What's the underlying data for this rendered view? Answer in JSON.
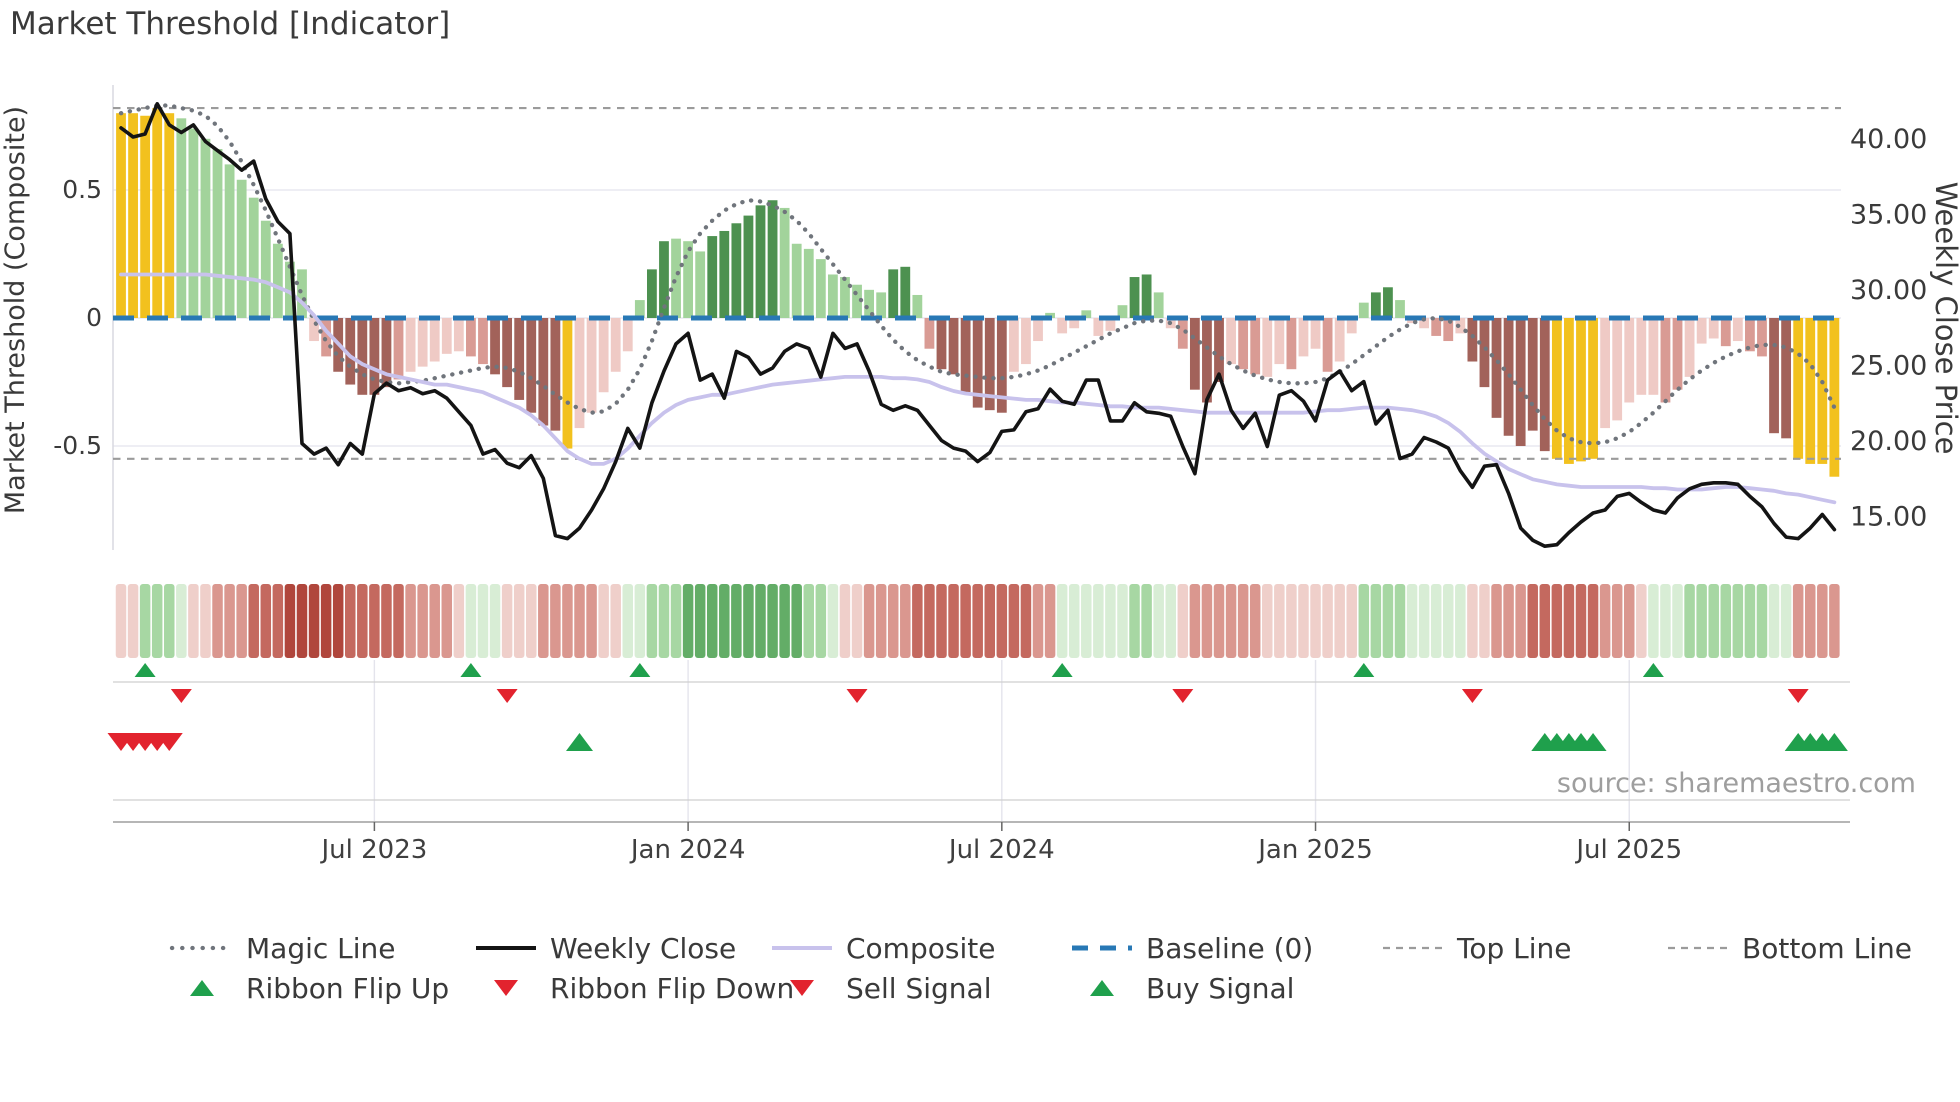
{
  "title": "Market Threshold [Indicator]",
  "source_note": "source: sharemaestro.com",
  "axes": {
    "left_label": "Market Threshold (Composite)",
    "right_label": "Weekly Close Price",
    "left_ticks": [
      "0.5",
      "0",
      "-0.5"
    ],
    "left_tick_values": [
      0.5,
      0,
      -0.5
    ],
    "right_ticks": [
      "40.00",
      "35.00",
      "30.00",
      "25.00",
      "20.00",
      "15.00"
    ],
    "right_tick_values": [
      40,
      35,
      30,
      25,
      20,
      15
    ],
    "x_ticks": [
      "Jul 2023",
      "Jan 2024",
      "Jul 2024",
      "Jan 2025",
      "Jul 2025"
    ],
    "x_tick_weeks": [
      21,
      47,
      73,
      99,
      125
    ]
  },
  "chart_data": {
    "type": "bar",
    "subtype": "weekly composite indicator bars with overlay lines, color ribbon and signal marker rows",
    "x_unit": "week",
    "n_weeks": 143,
    "ylim_left": [
      -0.85,
      0.9
    ],
    "ylim_right": [
      12,
      43
    ],
    "top_line": 0.82,
    "bottom_line": -0.55,
    "baseline": 0,
    "composite_bars": [
      0.8,
      0.8,
      0.79,
      0.82,
      0.8,
      0.78,
      0.74,
      0.7,
      0.66,
      0.6,
      0.54,
      0.47,
      0.38,
      0.29,
      0.22,
      0.19,
      -0.09,
      -0.15,
      -0.21,
      -0.26,
      -0.3,
      -0.3,
      -0.27,
      -0.24,
      -0.21,
      -0.19,
      -0.17,
      -0.14,
      -0.13,
      -0.15,
      -0.18,
      -0.22,
      -0.27,
      -0.32,
      -0.37,
      -0.42,
      -0.44,
      -0.51,
      -0.43,
      -0.37,
      -0.29,
      -0.21,
      -0.13,
      0.07,
      0.19,
      0.3,
      0.31,
      0.3,
      0.26,
      0.32,
      0.34,
      0.37,
      0.4,
      0.44,
      0.46,
      0.43,
      0.29,
      0.27,
      0.23,
      0.17,
      0.16,
      0.13,
      0.11,
      0.1,
      0.19,
      0.2,
      0.09,
      -0.12,
      -0.2,
      -0.22,
      -0.29,
      -0.35,
      -0.36,
      -0.37,
      -0.21,
      -0.18,
      -0.09,
      0.02,
      -0.06,
      -0.04,
      0.03,
      -0.07,
      -0.05,
      0.05,
      0.16,
      0.17,
      0.1,
      -0.04,
      -0.12,
      -0.28,
      -0.33,
      -0.25,
      -0.18,
      -0.2,
      -0.22,
      -0.23,
      -0.18,
      -0.2,
      -0.15,
      -0.12,
      -0.21,
      -0.17,
      -0.06,
      0.06,
      0.1,
      0.12,
      0.07,
      -0.02,
      -0.04,
      -0.07,
      -0.09,
      -0.06,
      -0.17,
      -0.27,
      -0.39,
      -0.46,
      -0.5,
      -0.44,
      -0.52,
      -0.55,
      -0.57,
      -0.56,
      -0.55,
      -0.43,
      -0.4,
      -0.33,
      -0.3,
      -0.3,
      -0.33,
      -0.28,
      -0.23,
      -0.1,
      -0.08,
      -0.11,
      -0.09,
      -0.13,
      -0.15,
      -0.45,
      -0.47,
      -0.55,
      -0.57,
      -0.57,
      -0.62
    ],
    "bar_colors": [
      "Y",
      "Y",
      "Y",
      "Y",
      "Y",
      "g",
      "g",
      "g",
      "g",
      "g",
      "g",
      "g",
      "g",
      "g",
      "g",
      "g",
      "r",
      "m",
      "R",
      "R",
      "R",
      "R",
      "R",
      "m",
      "r",
      "r",
      "r",
      "r",
      "r",
      "m",
      "m",
      "R",
      "R",
      "R",
      "R",
      "R",
      "R",
      "Y",
      "r",
      "r",
      "r",
      "r",
      "r",
      "g",
      "G",
      "G",
      "g",
      "g",
      "g",
      "G",
      "G",
      "G",
      "G",
      "G",
      "G",
      "g",
      "g",
      "g",
      "g",
      "g",
      "g",
      "g",
      "g",
      "g",
      "G",
      "G",
      "g",
      "m",
      "R",
      "R",
      "R",
      "R",
      "R",
      "R",
      "r",
      "r",
      "r",
      "g",
      "r",
      "r",
      "g",
      "r",
      "r",
      "g",
      "G",
      "G",
      "g",
      "r",
      "m",
      "R",
      "R",
      "R",
      "r",
      "m",
      "m",
      "r",
      "r",
      "m",
      "r",
      "r",
      "m",
      "r",
      "r",
      "g",
      "G",
      "G",
      "g",
      "r",
      "r",
      "m",
      "m",
      "r",
      "R",
      "R",
      "R",
      "R",
      "R",
      "R",
      "R",
      "Y",
      "Y",
      "Y",
      "Y",
      "r",
      "r",
      "r",
      "r",
      "r",
      "m",
      "m",
      "r",
      "r",
      "r",
      "m",
      "r",
      "m",
      "m",
      "R",
      "R",
      "Y",
      "Y",
      "Y",
      "Y"
    ],
    "weekly_close": [
      40.7,
      40.1,
      40.3,
      42.3,
      40.9,
      40.4,
      40.9,
      39.8,
      39.2,
      38.6,
      37.9,
      38.5,
      36.0,
      34.5,
      33.7,
      19.8,
      19.1,
      19.5,
      18.4,
      19.8,
      19.1,
      23.1,
      23.8,
      23.3,
      23.5,
      23.1,
      23.3,
      22.8,
      21.9,
      21.0,
      19.1,
      19.4,
      18.5,
      18.2,
      19.0,
      17.5,
      13.7,
      13.5,
      14.2,
      15.4,
      16.8,
      18.6,
      20.8,
      19.5,
      22.5,
      24.6,
      26.4,
      27.1,
      24.0,
      24.4,
      22.8,
      25.9,
      25.5,
      24.4,
      24.8,
      25.9,
      26.4,
      26.1,
      24.2,
      27.1,
      26.1,
      26.4,
      24.6,
      22.4,
      22.0,
      22.3,
      22.0,
      21.0,
      20.0,
      19.5,
      19.3,
      18.6,
      19.2,
      20.6,
      20.7,
      21.9,
      22.1,
      23.4,
      22.6,
      22.4,
      24.0,
      24.0,
      21.3,
      21.3,
      22.5,
      21.9,
      21.8,
      21.6,
      19.6,
      17.8,
      22.7,
      24.4,
      22.0,
      20.8,
      21.8,
      19.6,
      23.0,
      23.3,
      22.6,
      21.3,
      24.0,
      24.6,
      23.3,
      23.9,
      21.1,
      22.0,
      18.8,
      19.1,
      20.2,
      19.9,
      19.5,
      18.0,
      16.9,
      18.3,
      18.4,
      16.5,
      14.2,
      13.4,
      13.0,
      13.1,
      13.9,
      14.6,
      15.2,
      15.4,
      16.3,
      16.5,
      15.9,
      15.4,
      15.2,
      16.2,
      16.8,
      17.1,
      17.2,
      17.2,
      17.1,
      16.3,
      15.6,
      14.5,
      13.6,
      13.5,
      14.2,
      15.1,
      14.1
    ],
    "composite_line": [
      0.17,
      0.17,
      0.17,
      0.17,
      0.17,
      0.17,
      0.17,
      0.17,
      0.165,
      0.16,
      0.155,
      0.15,
      0.14,
      0.12,
      0.1,
      0.06,
      0.01,
      -0.05,
      -0.1,
      -0.15,
      -0.18,
      -0.2,
      -0.22,
      -0.23,
      -0.24,
      -0.25,
      -0.26,
      -0.26,
      -0.27,
      -0.28,
      -0.29,
      -0.31,
      -0.33,
      -0.35,
      -0.38,
      -0.42,
      -0.47,
      -0.52,
      -0.55,
      -0.57,
      -0.57,
      -0.55,
      -0.51,
      -0.46,
      -0.41,
      -0.37,
      -0.34,
      -0.32,
      -0.31,
      -0.3,
      -0.3,
      -0.29,
      -0.28,
      -0.27,
      -0.26,
      -0.255,
      -0.25,
      -0.245,
      -0.24,
      -0.235,
      -0.23,
      -0.23,
      -0.23,
      -0.23,
      -0.235,
      -0.235,
      -0.24,
      -0.25,
      -0.27,
      -0.285,
      -0.295,
      -0.3,
      -0.305,
      -0.31,
      -0.315,
      -0.32,
      -0.32,
      -0.325,
      -0.33,
      -0.33,
      -0.335,
      -0.34,
      -0.345,
      -0.345,
      -0.35,
      -0.35,
      -0.35,
      -0.355,
      -0.36,
      -0.365,
      -0.37,
      -0.37,
      -0.37,
      -0.37,
      -0.37,
      -0.37,
      -0.37,
      -0.37,
      -0.37,
      -0.365,
      -0.36,
      -0.36,
      -0.355,
      -0.35,
      -0.35,
      -0.35,
      -0.355,
      -0.36,
      -0.37,
      -0.385,
      -0.41,
      -0.445,
      -0.49,
      -0.53,
      -0.56,
      -0.59,
      -0.61,
      -0.63,
      -0.64,
      -0.65,
      -0.655,
      -0.66,
      -0.66,
      -0.66,
      -0.66,
      -0.66,
      -0.66,
      -0.665,
      -0.665,
      -0.67,
      -0.67,
      -0.67,
      -0.665,
      -0.66,
      -0.66,
      -0.665,
      -0.67,
      -0.675,
      -0.685,
      -0.69,
      -0.7,
      -0.71,
      -0.72
    ],
    "magic_line": [
      0.8,
      0.81,
      0.82,
      0.83,
      0.83,
      0.82,
      0.81,
      0.79,
      0.75,
      0.69,
      0.61,
      0.52,
      0.42,
      0.31,
      0.2,
      0.09,
      -0.01,
      -0.09,
      -0.15,
      -0.19,
      -0.22,
      -0.24,
      -0.25,
      -0.255,
      -0.25,
      -0.245,
      -0.235,
      -0.225,
      -0.215,
      -0.205,
      -0.195,
      -0.19,
      -0.195,
      -0.21,
      -0.235,
      -0.265,
      -0.3,
      -0.33,
      -0.355,
      -0.37,
      -0.365,
      -0.335,
      -0.28,
      -0.2,
      -0.09,
      0.04,
      0.16,
      0.26,
      0.33,
      0.38,
      0.42,
      0.445,
      0.46,
      0.455,
      0.44,
      0.415,
      0.38,
      0.33,
      0.27,
      0.21,
      0.15,
      0.09,
      0.03,
      -0.03,
      -0.085,
      -0.13,
      -0.165,
      -0.19,
      -0.21,
      -0.22,
      -0.225,
      -0.23,
      -0.235,
      -0.235,
      -0.23,
      -0.22,
      -0.205,
      -0.185,
      -0.16,
      -0.135,
      -0.11,
      -0.085,
      -0.06,
      -0.04,
      -0.02,
      -0.01,
      -0.01,
      -0.02,
      -0.045,
      -0.08,
      -0.115,
      -0.15,
      -0.18,
      -0.205,
      -0.225,
      -0.24,
      -0.25,
      -0.255,
      -0.255,
      -0.25,
      -0.235,
      -0.21,
      -0.18,
      -0.145,
      -0.11,
      -0.075,
      -0.045,
      -0.02,
      -0.005,
      0.0,
      -0.01,
      -0.035,
      -0.07,
      -0.115,
      -0.165,
      -0.22,
      -0.28,
      -0.34,
      -0.395,
      -0.44,
      -0.47,
      -0.485,
      -0.49,
      -0.485,
      -0.47,
      -0.445,
      -0.41,
      -0.37,
      -0.325,
      -0.28,
      -0.24,
      -0.205,
      -0.175,
      -0.15,
      -0.13,
      -0.115,
      -0.105,
      -0.105,
      -0.115,
      -0.14,
      -0.18,
      -0.25,
      -0.35
    ],
    "ribbon": [
      -1,
      -1,
      2,
      2,
      2,
      1,
      -1,
      -1,
      -2,
      -2,
      -2,
      -3,
      -3,
      -3,
      -4,
      -4,
      -4,
      -4,
      -4,
      -3,
      -3,
      -3,
      -3,
      -3,
      -2,
      -2,
      -2,
      -2,
      -1,
      1,
      1,
      1,
      -1,
      -1,
      -1,
      -2,
      -2,
      -2,
      -2,
      -2,
      -1,
      -1,
      1,
      1,
      2,
      2,
      2,
      3,
      3,
      3,
      3,
      3,
      3,
      3,
      3,
      3,
      3,
      2,
      2,
      1,
      -1,
      -1,
      -2,
      -2,
      -2,
      -2,
      -3,
      -3,
      -3,
      -3,
      -3,
      -3,
      -3,
      -3,
      -3,
      -3,
      -2,
      -2,
      1,
      1,
      1,
      1,
      1,
      1,
      2,
      2,
      1,
      1,
      -1,
      -2,
      -2,
      -2,
      -2,
      -2,
      -2,
      -1,
      -1,
      -1,
      -1,
      -1,
      -1,
      -1,
      -1,
      2,
      2,
      2,
      2,
      1,
      1,
      1,
      1,
      1,
      -1,
      -1,
      -2,
      -2,
      -2,
      -3,
      -3,
      -3,
      -3,
      -3,
      -3,
      -2,
      -2,
      -2,
      -1,
      1,
      1,
      1,
      2,
      2,
      2,
      2,
      2,
      2,
      2,
      1,
      1,
      -2,
      -2,
      -2,
      -2
    ],
    "signals": {
      "ribbon_flip_up_weeks": [
        2,
        29,
        43,
        78,
        103,
        127
      ],
      "ribbon_flip_down_weeks": [
        5,
        32,
        61,
        88,
        112,
        139
      ],
      "sell_signal_weeks": [
        0,
        1,
        2,
        3,
        4
      ],
      "buy_signal_weeks": [
        38,
        118,
        119,
        120,
        121,
        122,
        139,
        140,
        141,
        142
      ]
    }
  },
  "legend": {
    "row1": [
      {
        "label": "Magic Line",
        "swatch": "dotted",
        "color": "#70757C"
      },
      {
        "label": "Weekly Close",
        "swatch": "solid",
        "color": "#141414"
      },
      {
        "label": "Composite",
        "swatch": "solid",
        "color": "#C8C2EC"
      },
      {
        "label": "Baseline (0)",
        "swatch": "dashed",
        "color": "#2878B5"
      },
      {
        "label": "Top Line",
        "swatch": "dashed-small",
        "color": "#9B9B9B"
      },
      {
        "label": "Bottom Line",
        "swatch": "dashed-small",
        "color": "#9B9B9B"
      }
    ],
    "row2": [
      {
        "label": "Ribbon Flip Up",
        "swatch": "tri-up",
        "color": "#1FA04C"
      },
      {
        "label": "Ribbon Flip Down",
        "swatch": "tri-down",
        "color": "#E2232E"
      },
      {
        "label": "Sell Signal",
        "swatch": "tri-down",
        "color": "#E2232E"
      },
      {
        "label": "Buy Signal",
        "swatch": "tri-up",
        "color": "#1FA04C"
      }
    ]
  },
  "colors": {
    "bar_classes": {
      "Y": "#F2C11E",
      "g": "#A2D39B",
      "G": "#4D9150",
      "r": "#EFCAC5",
      "m": "#D99B94",
      "R": "#A2625A"
    },
    "ribbon_scale": {
      "-4": "#B0463C",
      "-3": "#C4695F",
      "-2": "#DA978F",
      "-1": "#EFCFCA",
      "1": "#D8EDD5",
      "2": "#A7D7A3",
      "3": "#63AD67"
    },
    "baseline_blue": "#2878B5",
    "magic_gray": "#70757C",
    "weekly_close_black": "#141414",
    "composite_purple": "#C8C2EC",
    "band_dash_gray": "#9B9B9B",
    "signal_green": "#1FA04C",
    "signal_red": "#E2232E",
    "grid": "#E9E9F1",
    "text_dark": "#3A3A3A",
    "text_gray": "#9E9E9E"
  }
}
